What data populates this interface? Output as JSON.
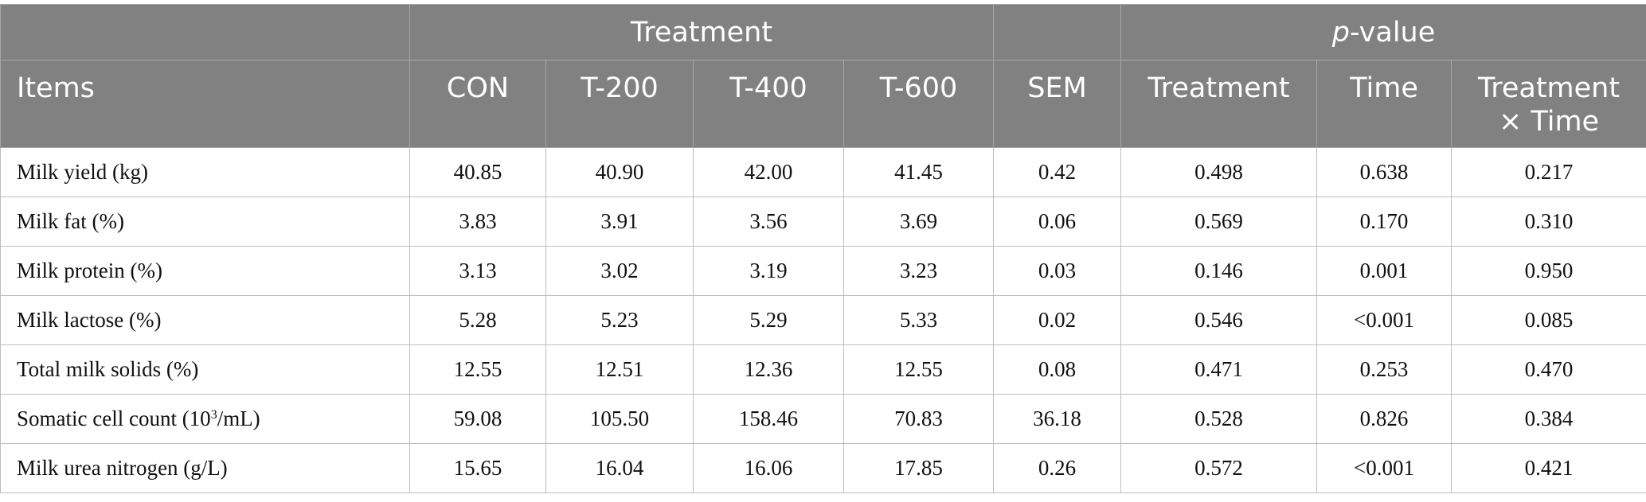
{
  "header": {
    "group_treatment": "Treatment",
    "group_pvalue_italic": "p",
    "group_pvalue_rest": "-value",
    "columns": [
      "Items",
      "CON",
      "T-200",
      "T-400",
      "T-600",
      "SEM",
      "Treatment",
      "Time",
      "Treatment",
      "× Time"
    ]
  },
  "rows": [
    {
      "item": "Milk yield (kg)",
      "con": "40.85",
      "t200": "40.90",
      "t400": "42.00",
      "t600": "41.45",
      "sem": "0.42",
      "p_treatment": "0.498",
      "p_time": "0.638",
      "p_interaction": "0.217"
    },
    {
      "item": "Milk fat (%)",
      "con": "3.83",
      "t200": "3.91",
      "t400": "3.56",
      "t600": "3.69",
      "sem": "0.06",
      "p_treatment": "0.569",
      "p_time": "0.170",
      "p_interaction": "0.310"
    },
    {
      "item": "Milk protein (%)",
      "con": "3.13",
      "t200": "3.02",
      "t400": "3.19",
      "t600": "3.23",
      "sem": "0.03",
      "p_treatment": "0.146",
      "p_time": "0.001",
      "p_interaction": "0.950"
    },
    {
      "item": "Milk lactose (%)",
      "con": "5.28",
      "t200": "5.23",
      "t400": "5.29",
      "t600": "5.33",
      "sem": "0.02",
      "p_treatment": "0.546",
      "p_time": "<0.001",
      "p_interaction": "0.085"
    },
    {
      "item": "Total milk solids (%)",
      "con": "12.55",
      "t200": "12.51",
      "t400": "12.36",
      "t600": "12.55",
      "sem": "0.08",
      "p_treatment": "0.471",
      "p_time": "0.253",
      "p_interaction": "0.470"
    },
    {
      "item": "Somatic cell count (10",
      "item_sup": "3",
      "item_after": "/mL)",
      "con": "59.08",
      "t200": "105.50",
      "t400": "158.46",
      "t600": "70.83",
      "sem": "36.18",
      "p_treatment": "0.528",
      "p_time": "0.826",
      "p_interaction": "0.384"
    },
    {
      "item": "Milk urea nitrogen (g/L)",
      "con": "15.65",
      "t200": "16.04",
      "t400": "16.06",
      "t600": "17.85",
      "sem": "0.26",
      "p_treatment": "0.572",
      "p_time": "<0.001",
      "p_interaction": "0.421"
    }
  ]
}
